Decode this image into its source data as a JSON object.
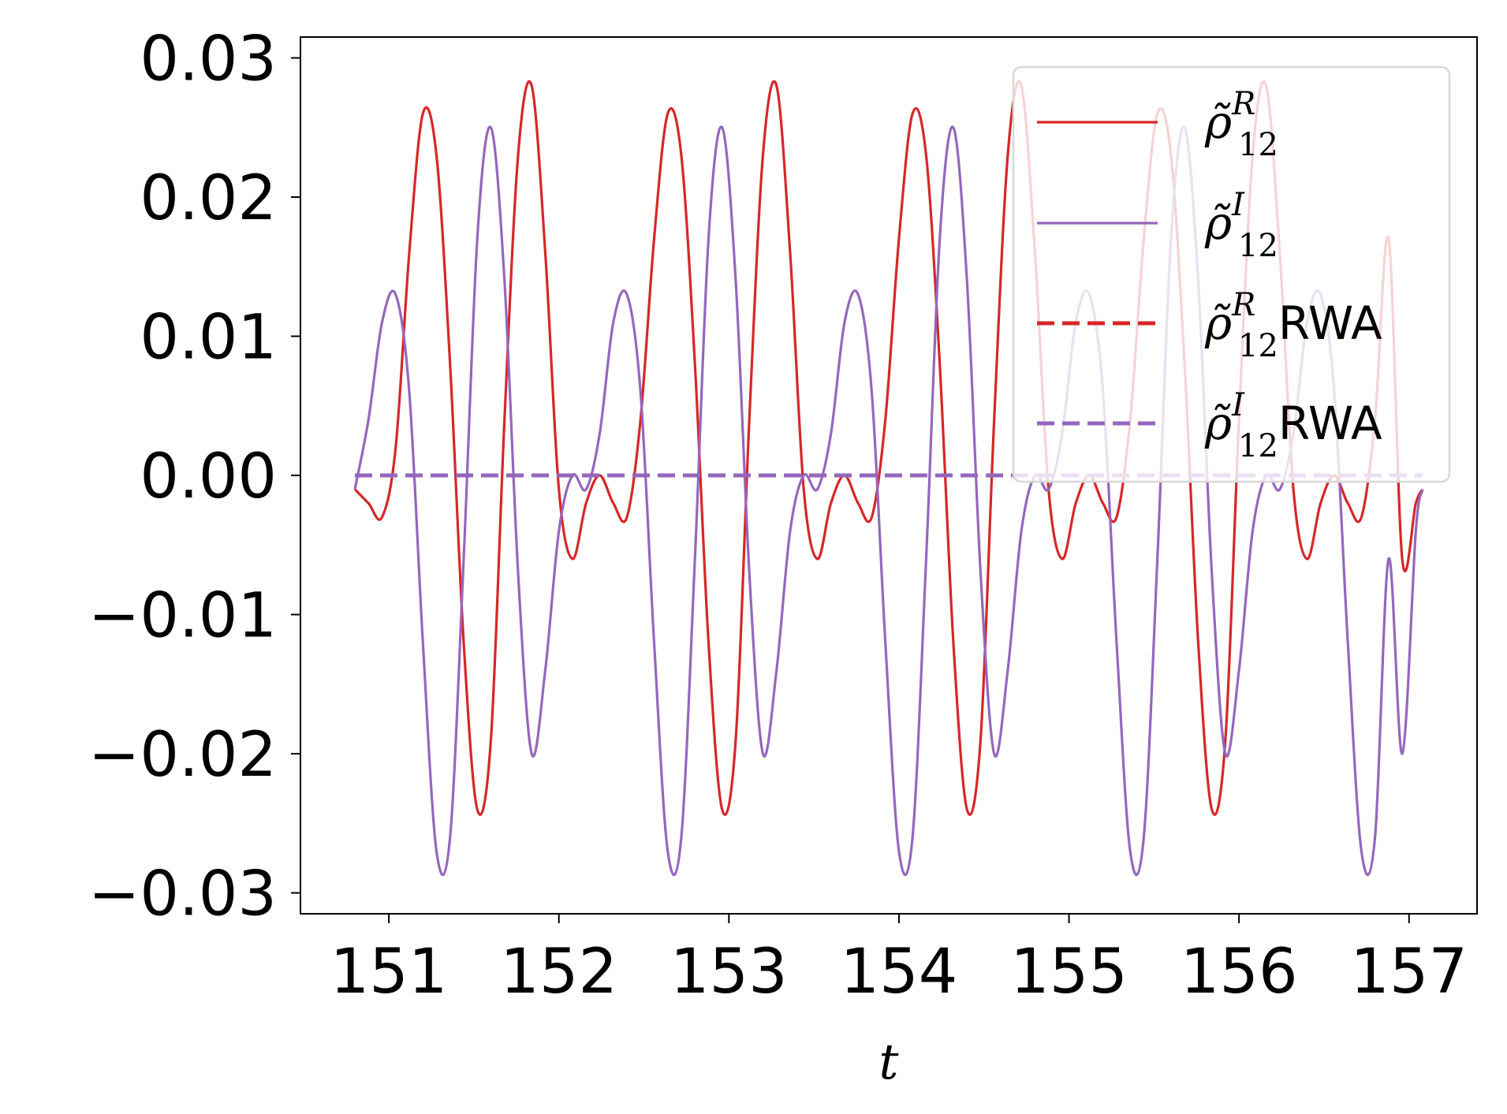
{
  "chart_data": {
    "type": "line",
    "title": "",
    "xlabel": "t",
    "ylabel": "",
    "xlim": [
      150.48,
      157.4
    ],
    "ylim": [
      -0.0315,
      0.0315
    ],
    "xticks": [
      151,
      152,
      153,
      154,
      155,
      156,
      157
    ],
    "xtick_labels": [
      "151",
      "152",
      "153",
      "154",
      "155",
      "156",
      "157"
    ],
    "yticks": [
      -0.03,
      -0.02,
      -0.01,
      0.0,
      0.01,
      0.02,
      0.03
    ],
    "ytick_labels": [
      "−0.03",
      "−0.02",
      "−0.01",
      "0.00",
      "0.01",
      "0.02",
      "0.03"
    ],
    "grid": false,
    "legend_position": "top-right",
    "x": [
      150.8,
      150.88,
      150.96,
      151.04,
      151.12,
      151.2,
      151.28,
      151.36,
      151.44,
      151.52,
      151.6,
      151.68,
      151.76,
      151.84,
      151.92,
      152.0,
      152.08,
      152.16,
      152.24,
      152.32,
      152.4,
      152.48,
      152.56,
      152.64,
      152.72,
      152.8,
      152.88,
      152.96,
      153.04,
      153.12,
      153.2,
      153.28,
      153.36,
      153.44,
      153.52,
      153.6,
      153.68,
      153.76,
      153.84,
      153.92,
      154.0,
      154.08,
      154.16,
      154.24,
      154.32,
      154.4,
      154.48,
      154.56,
      154.64,
      154.72,
      154.8,
      154.88,
      154.96,
      155.04,
      155.12,
      155.2,
      155.28,
      155.36,
      155.44,
      155.52,
      155.6,
      155.68,
      155.76,
      155.84,
      155.92,
      156.0,
      156.08,
      156.16,
      156.24,
      156.32,
      156.4,
      156.48,
      156.56,
      156.64,
      156.72,
      156.8,
      156.88,
      156.96,
      157.04,
      157.08
    ],
    "series": [
      {
        "name": "ρ̃ R 12",
        "legend": {
          "base": "ρ̃",
          "sup": "R",
          "sub": "12",
          "suffix": ""
        },
        "color": "#d62728",
        "style": "solid",
        "values": [
          -0.001,
          -0.002,
          -0.003,
          0.002,
          0.016,
          0.026,
          0.023,
          0.008,
          -0.012,
          -0.024,
          -0.019,
          0.004,
          0.023,
          0.028,
          0.016,
          -0.001,
          -0.006,
          -0.002,
          0.0,
          -0.002,
          -0.003,
          0.004,
          0.017,
          0.026,
          0.023,
          0.008,
          -0.012,
          -0.024,
          -0.019,
          0.004,
          0.023,
          0.028,
          0.016,
          -0.001,
          -0.006,
          -0.002,
          0.0,
          -0.002,
          -0.003,
          0.004,
          0.017,
          0.026,
          0.023,
          0.008,
          -0.012,
          -0.024,
          -0.019,
          0.004,
          0.023,
          0.028,
          0.016,
          -0.001,
          -0.006,
          -0.002,
          0.0,
          -0.002,
          -0.003,
          0.004,
          0.017,
          0.026,
          0.023,
          0.008,
          -0.012,
          -0.024,
          -0.019,
          0.004,
          0.023,
          0.028,
          0.016,
          -0.001,
          -0.006,
          -0.002,
          0.0,
          -0.002,
          -0.003,
          0.004,
          0.017,
          -0.006,
          -0.002,
          -0.001
        ]
      },
      {
        "name": "ρ̃ I 12",
        "legend": {
          "base": "ρ̃",
          "sup": "I",
          "sub": "12",
          "suffix": ""
        },
        "color": "#9467bd",
        "style": "solid",
        "values": [
          -0.001,
          0.004,
          0.011,
          0.013,
          0.006,
          -0.012,
          -0.027,
          -0.026,
          -0.006,
          0.017,
          0.025,
          0.014,
          -0.007,
          -0.02,
          -0.014,
          -0.004,
          0.0,
          -0.001,
          0.003,
          0.011,
          0.013,
          0.006,
          -0.012,
          -0.027,
          -0.026,
          -0.006,
          0.017,
          0.025,
          0.014,
          -0.007,
          -0.02,
          -0.014,
          -0.004,
          0.0,
          -0.001,
          0.003,
          0.011,
          0.013,
          0.006,
          -0.012,
          -0.027,
          -0.026,
          -0.006,
          0.017,
          0.025,
          0.014,
          -0.007,
          -0.02,
          -0.014,
          -0.004,
          0.0,
          -0.001,
          0.003,
          0.011,
          0.013,
          0.006,
          -0.012,
          -0.027,
          -0.026,
          -0.006,
          0.017,
          0.025,
          0.014,
          -0.007,
          -0.02,
          -0.014,
          -0.004,
          0.0,
          -0.001,
          0.003,
          0.011,
          0.013,
          0.006,
          -0.012,
          -0.027,
          -0.026,
          -0.006,
          -0.02,
          -0.004,
          -0.001
        ]
      },
      {
        "name": "ρ̃ R 12 RWA",
        "legend": {
          "base": "ρ̃",
          "sup": "R",
          "sub": "12",
          "suffix": "RWA"
        },
        "color": "#d62728",
        "style": "dashed",
        "values": "zeros"
      },
      {
        "name": "ρ̃ I 12 RWA",
        "legend": {
          "base": "ρ̃",
          "sup": "I",
          "sub": "12",
          "suffix": "RWA"
        },
        "color": "#9467bd",
        "style": "dashed",
        "values": "zeros"
      }
    ]
  }
}
